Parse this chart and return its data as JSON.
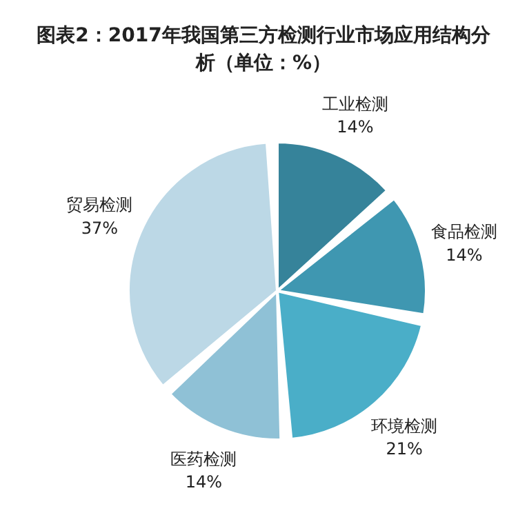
{
  "chart_data": {
    "type": "pie",
    "title": "图表2：2017年我国第三方检测行业市场应用结构分析（单位：%）",
    "categories": [
      "工业检测",
      "食品检测",
      "环境检测",
      "医药检测",
      "贸易检测"
    ],
    "values": [
      14,
      14,
      21,
      14,
      37
    ],
    "value_labels": [
      "14%",
      "14%",
      "21%",
      "14%",
      "37%"
    ],
    "colors": [
      "#36839a",
      "#3f97b1",
      "#4aaec8",
      "#8fc1d6",
      "#bcd8e6"
    ],
    "legend": false
  }
}
